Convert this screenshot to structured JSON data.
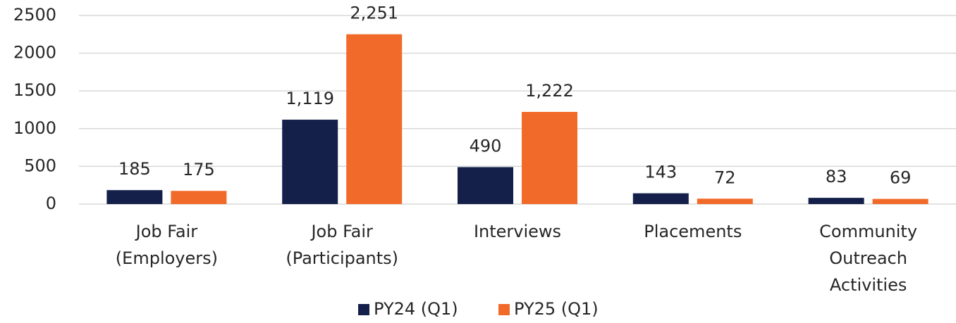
{
  "chart_data": {
    "type": "bar",
    "categories": [
      [
        "Job Fair",
        "(Employers)"
      ],
      [
        "Job Fair",
        "(Participants)"
      ],
      [
        "Interviews"
      ],
      [
        "Placements"
      ],
      [
        "Community",
        "Outreach",
        "Activities"
      ]
    ],
    "series": [
      {
        "name": "PY24 (Q1)",
        "color": "#14204a",
        "values": [
          185,
          1119,
          490,
          143,
          83
        ],
        "value_labels": [
          "185",
          "1,119",
          "490",
          "143",
          "83"
        ]
      },
      {
        "name": "PY25 (Q1)",
        "color": "#f26a2a",
        "values": [
          175,
          2251,
          1222,
          72,
          69
        ],
        "value_labels": [
          "175",
          "2,251",
          "1,222",
          "72",
          "69"
        ]
      }
    ],
    "ylim": [
      0,
      2500
    ],
    "yticks": [
      0,
      500,
      1000,
      1500,
      2000,
      2500
    ],
    "grid": true,
    "legend": "bottom"
  }
}
